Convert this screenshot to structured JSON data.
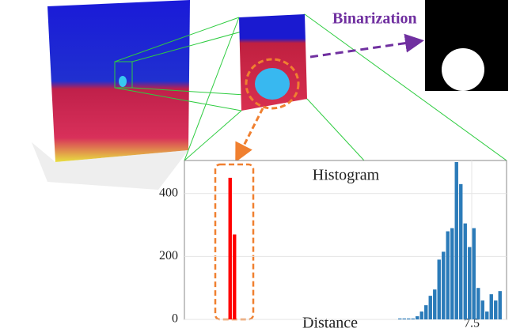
{
  "chart_data": {
    "type": "bar",
    "title": "Histogram",
    "xlabel": "Distance",
    "annotation": "Binarization",
    "xlim": [
      0.9,
      8.3
    ],
    "ylim": [
      0,
      505
    ],
    "xticks": [
      7.5
    ],
    "yticks": [
      0,
      200,
      400
    ],
    "grid": true,
    "series": [
      {
        "color": "#ff0000",
        "x": [
          1.95,
          2.05
        ],
        "values": [
          450,
          270
        ]
      },
      {
        "color": "#2b7bb9",
        "x": [
          5.85,
          5.95,
          6.05,
          6.15,
          6.25,
          6.35,
          6.45,
          6.55,
          6.65,
          6.75,
          6.85,
          6.95,
          7.05,
          7.15,
          7.25,
          7.35,
          7.45,
          7.55,
          7.65,
          7.75,
          7.85,
          7.95,
          8.05,
          8.15
        ],
        "values": [
          3,
          3,
          3,
          3,
          10,
          25,
          45,
          75,
          95,
          190,
          215,
          280,
          290,
          500,
          430,
          305,
          230,
          290,
          100,
          60,
          25,
          80,
          60,
          90
        ]
      }
    ]
  }
}
